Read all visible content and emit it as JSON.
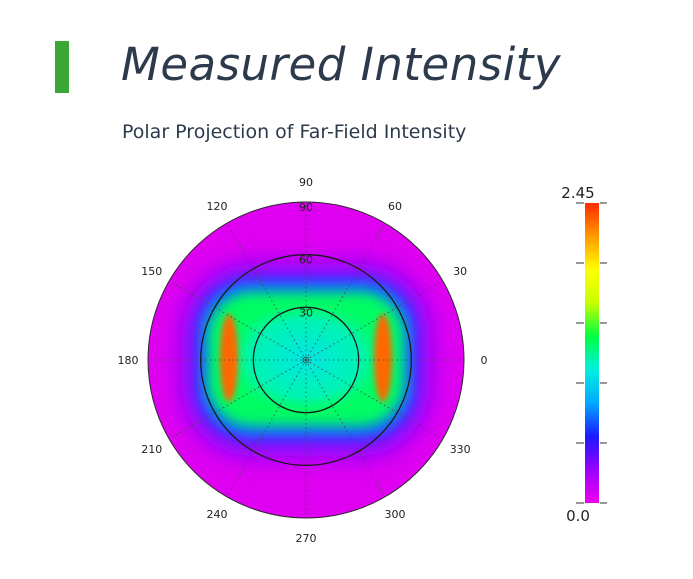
{
  "header": {
    "title": "Measured Intensity",
    "subtitle": "Polar Projection of Far-Field Intensity",
    "accent_color": "#3aa635"
  },
  "chart_data": {
    "type": "heatmap",
    "projection": "polar",
    "angular_ticks": [
      {
        "value": 0,
        "label": "0"
      },
      {
        "value": 30,
        "label": "30"
      },
      {
        "value": 60,
        "label": "60"
      },
      {
        "value": 90,
        "label": "90"
      },
      {
        "value": 120,
        "label": "120"
      },
      {
        "value": 150,
        "label": "150"
      },
      {
        "value": 180,
        "label": "180"
      },
      {
        "value": 210,
        "label": "210"
      },
      {
        "value": 240,
        "label": "240"
      },
      {
        "value": 270,
        "label": "270"
      },
      {
        "value": 300,
        "label": "300"
      },
      {
        "value": 330,
        "label": "330"
      }
    ],
    "radial_ticks": [
      {
        "value": 30,
        "label": "30"
      },
      {
        "value": 60,
        "label": "60"
      },
      {
        "value": 90,
        "label": "90"
      }
    ],
    "radial_max": 90,
    "colorbar": {
      "min": 0.0,
      "max": 2.45,
      "min_label": "0.0",
      "max_label": "2.45",
      "colors": [
        "#ee00ee",
        "#9a00ff",
        "#1a1aff",
        "#00a8ff",
        "#00f0e0",
        "#00ff40",
        "#c8ff00",
        "#ffff00",
        "#ff9900",
        "#ff2a00"
      ]
    },
    "background_value": 0.05,
    "intensity_regions": [
      {
        "name": "outer-halo",
        "value": 0.35
      },
      {
        "name": "blue-rim",
        "value": 0.7
      },
      {
        "name": "green-plateau",
        "value": 1.3
      },
      {
        "name": "center",
        "value": 1.05
      },
      {
        "name": "left-edge-peak",
        "value": 2.3
      },
      {
        "name": "right-edge-peak",
        "value": 2.3
      }
    ],
    "grid": true
  }
}
